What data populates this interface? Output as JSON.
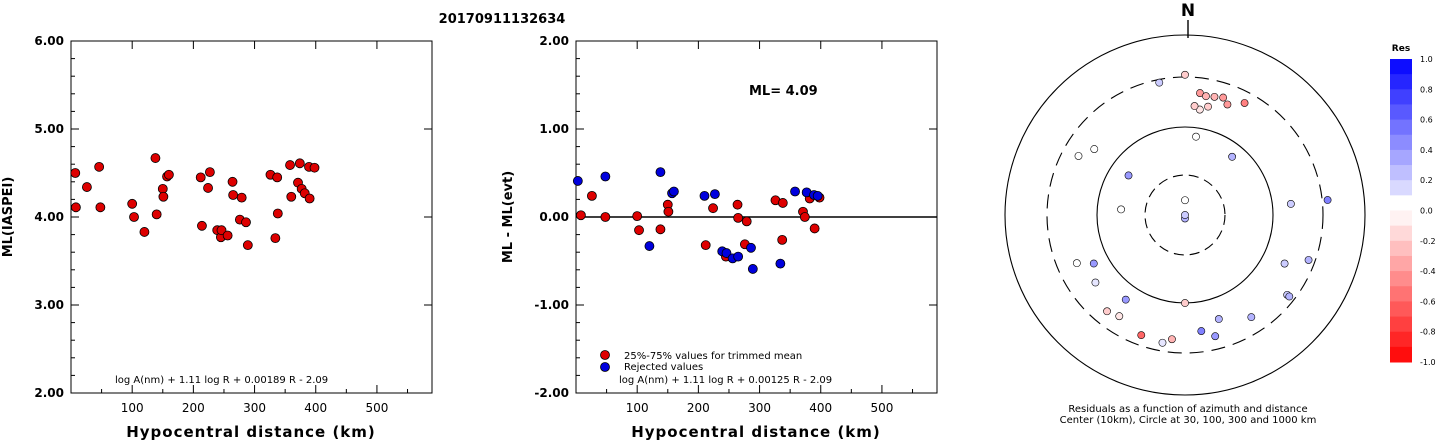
{
  "header": {
    "title": "20170911132634"
  },
  "chart_data": [
    {
      "type": "scatter",
      "id": "ml-vs-distance",
      "xlabel": "Hypocentral distance (km)",
      "ylabel": "ML(IASPEI)",
      "xlim": [
        0,
        590
      ],
      "ylim": [
        2.0,
        6.0
      ],
      "xticks": [
        "100",
        "200",
        "300",
        "400",
        "500"
      ],
      "xtick_values": [
        100,
        200,
        300,
        400,
        500
      ],
      "yticks": [
        "2.00",
        "3.00",
        "4.00",
        "5.00",
        "6.00"
      ],
      "ytick_values": [
        2.0,
        3.0,
        4.0,
        5.0,
        6.0
      ],
      "formula": "log A(nm) + 1.11 log R + 0.00189 R - 2.09",
      "series": [
        {
          "color": "#dd0000",
          "points": [
            [
              7,
              4.5
            ],
            [
              8,
              4.11
            ],
            [
              26,
              4.34
            ],
            [
              46,
              4.57
            ],
            [
              48,
              4.11
            ],
            [
              100,
              4.15
            ],
            [
              103,
              4.0
            ],
            [
              120,
              3.83
            ],
            [
              138,
              4.67
            ],
            [
              140,
              4.03
            ],
            [
              150,
              4.32
            ],
            [
              151,
              4.23
            ],
            [
              157,
              4.46
            ],
            [
              160,
              4.48
            ],
            [
              212,
              4.45
            ],
            [
              214,
              3.9
            ],
            [
              224,
              4.33
            ],
            [
              227,
              4.51
            ],
            [
              239,
              3.85
            ],
            [
              245,
              3.77
            ],
            [
              246,
              3.85
            ],
            [
              256,
              3.79
            ],
            [
              264,
              4.4
            ],
            [
              265,
              4.25
            ],
            [
              276,
              3.97
            ],
            [
              279,
              4.22
            ],
            [
              286,
              3.94
            ],
            [
              289,
              3.68
            ],
            [
              326,
              4.48
            ],
            [
              334,
              3.76
            ],
            [
              337,
              4.45
            ],
            [
              338,
              4.04
            ],
            [
              358,
              4.59
            ],
            [
              360,
              4.23
            ],
            [
              371,
              4.39
            ],
            [
              374,
              4.61
            ],
            [
              377,
              4.32
            ],
            [
              382,
              4.27
            ],
            [
              389,
              4.57
            ],
            [
              390,
              4.21
            ],
            [
              398,
              4.56
            ]
          ]
        }
      ]
    },
    {
      "type": "scatter",
      "id": "residual-vs-distance",
      "xlabel": "Hypocentral distance (km)",
      "ylabel": "ML - ML(evt)",
      "xlim": [
        0,
        590
      ],
      "ylim": [
        -2.0,
        2.0
      ],
      "xticks": [
        "100",
        "200",
        "300",
        "400",
        "500"
      ],
      "xtick_values": [
        100,
        200,
        300,
        400,
        500
      ],
      "yticks": [
        "-2.00",
        "-1.00",
        "0.00",
        "1.00",
        "2.00"
      ],
      "ytick_values": [
        -2.0,
        -1.0,
        0.0,
        1.0,
        2.0
      ],
      "annotation": "ML= 4.09",
      "formula": "log A(nm) + 1.11 log R + 0.00125 R - 2.09",
      "reference_line": 0,
      "legend": [
        {
          "label": "25%-75% values for trimmed mean",
          "color": "#dd0000"
        },
        {
          "label": "Rejected values",
          "color": "#0000dd"
        }
      ],
      "series": [
        {
          "name": "25%-75% values for trimmed mean",
          "color": "#dd0000",
          "points": [
            [
              8,
              0.02
            ],
            [
              26,
              0.24
            ],
            [
              48,
              0.0
            ],
            [
              100,
              0.01
            ],
            [
              103,
              -0.15
            ],
            [
              138,
              -0.14
            ],
            [
              150,
              0.14
            ],
            [
              151,
              0.06
            ],
            [
              212,
              -0.32
            ],
            [
              224,
              0.1
            ],
            [
              245,
              -0.45
            ],
            [
              264,
              0.14
            ],
            [
              265,
              -0.01
            ],
            [
              276,
              -0.31
            ],
            [
              279,
              -0.05
            ],
            [
              326,
              0.19
            ],
            [
              337,
              -0.26
            ],
            [
              338,
              0.16
            ],
            [
              371,
              0.06
            ],
            [
              374,
              0.0
            ],
            [
              382,
              0.21
            ],
            [
              390,
              -0.13
            ],
            [
              398,
              0.22
            ]
          ]
        },
        {
          "name": "Rejected values",
          "color": "#0000dd",
          "points": [
            [
              3,
              0.41
            ],
            [
              48,
              0.46
            ],
            [
              120,
              -0.33
            ],
            [
              138,
              0.51
            ],
            [
              157,
              0.27
            ],
            [
              160,
              0.29
            ],
            [
              210,
              0.24
            ],
            [
              227,
              0.26
            ],
            [
              239,
              -0.39
            ],
            [
              246,
              -0.41
            ],
            [
              256,
              -0.47
            ],
            [
              265,
              -0.45
            ],
            [
              286,
              -0.35
            ],
            [
              289,
              -0.59
            ],
            [
              334,
              -0.53
            ],
            [
              358,
              0.29
            ],
            [
              377,
              0.28
            ],
            [
              389,
              0.25
            ],
            [
              395,
              0.24
            ]
          ]
        }
      ]
    },
    {
      "type": "scatter",
      "id": "residual-azimuth-map",
      "title": "N",
      "caption_line1": "Residuals as a function of azimuth and distance",
      "caption_line2": "Center (10km), Circle at 30, 100, 300 and 1000 km",
      "colorbar_title": "Res",
      "colorbar_ticks": [
        "1.0",
        "0.8",
        "0.6",
        "0.4",
        "0.2",
        "0.0",
        "-0.2",
        "-0.4",
        "-0.6",
        "-0.8",
        "-1.0"
      ],
      "colorbar_values": [
        1.0,
        0.8,
        0.6,
        0.4,
        0.2,
        0.0,
        -0.2,
        -0.4,
        -0.6,
        -0.8,
        -1.0
      ],
      "series": [
        {
          "name": "stations",
          "points": [
            {
              "azimuth_deg": 7,
              "distance_km": 215,
              "residual": -0.4
            },
            {
              "azimuth_deg": 10,
              "distance_km": 205,
              "residual": -0.3
            },
            {
              "azimuth_deg": 14,
              "distance_km": 210,
              "residual": -0.3
            },
            {
              "azimuth_deg": 18,
              "distance_km": 218,
              "residual": -0.4
            },
            {
              "azimuth_deg": 21,
              "distance_km": 195,
              "residual": -0.4
            },
            {
              "azimuth_deg": 28,
              "distance_km": 235,
              "residual": -0.5
            },
            {
              "azimuth_deg": 349,
              "distance_km": 280,
              "residual": 0.2
            },
            {
              "azimuth_deg": 0,
              "distance_km": 320,
              "residual": -0.2
            },
            {
              "azimuth_deg": 8,
              "distance_km": 150,
              "residual": -0.1
            },
            {
              "azimuth_deg": 5,
              "distance_km": 160,
              "residual": -0.2
            },
            {
              "azimuth_deg": 12,
              "distance_km": 165,
              "residual": -0.2
            },
            {
              "azimuth_deg": 8,
              "distance_km": 80,
              "residual": 0.0
            },
            {
              "azimuth_deg": 0,
              "distance_km": 15,
              "residual": 0.0
            },
            {
              "azimuth_deg": 180,
              "distance_km": 11,
              "residual": 0.3
            },
            {
              "azimuth_deg": 160,
              "distance_km": 10,
              "residual": 0.2
            },
            {
              "azimuth_deg": 275,
              "distance_km": 55,
              "residual": 0.0
            },
            {
              "azimuth_deg": 305,
              "distance_km": 62,
              "residual": 0.4
            },
            {
              "azimuth_deg": 39,
              "distance_km": 72,
              "residual": 0.3
            },
            {
              "azimuth_deg": 84,
              "distance_km": 150,
              "residual": 0.2
            },
            {
              "azimuth_deg": 84,
              "distance_km": 350,
              "residual": 0.5
            },
            {
              "azimuth_deg": 110,
              "distance_km": 260,
              "residual": 0.3
            },
            {
              "azimuth_deg": 128,
              "distance_km": 250,
              "residual": 0.2
            },
            {
              "azimuth_deg": 147,
              "distance_km": 210,
              "residual": 0.3
            },
            {
              "azimuth_deg": 162,
              "distance_km": 160,
              "residual": 0.3
            },
            {
              "azimuth_deg": 166,
              "distance_km": 225,
              "residual": 0.4
            },
            {
              "azimuth_deg": 172,
              "distance_km": 190,
              "residual": 0.5
            },
            {
              "azimuth_deg": 180,
              "distance_km": 100,
              "residual": -0.2
            },
            {
              "azimuth_deg": 186,
              "distance_km": 225,
              "residual": -0.3
            },
            {
              "azimuth_deg": 190,
              "distance_km": 250,
              "residual": 0.1
            },
            {
              "azimuth_deg": 200,
              "distance_km": 240,
              "residual": -0.6
            },
            {
              "azimuth_deg": 213,
              "distance_km": 205,
              "residual": -0.1
            },
            {
              "azimuth_deg": 215,
              "distance_km": 140,
              "residual": 0.4
            },
            {
              "azimuth_deg": 219,
              "distance_km": 220,
              "residual": -0.2
            },
            {
              "azimuth_deg": 242,
              "distance_km": 140,
              "residual": 0.4
            },
            {
              "azimuth_deg": 233,
              "distance_km": 170,
              "residual": 0.1
            },
            {
              "azimuth_deg": 246,
              "distance_km": 195,
              "residual": 0.0
            },
            {
              "azimuth_deg": 306,
              "distance_km": 170,
              "residual": 0.0
            },
            {
              "azimuth_deg": 299,
              "distance_km": 210,
              "residual": 0.0
            },
            {
              "azimuth_deg": 116,
              "distance_km": 165,
              "residual": 0.2
            },
            {
              "azimuth_deg": 128,
              "distance_km": 265,
              "residual": 0.3
            }
          ]
        }
      ]
    }
  ]
}
